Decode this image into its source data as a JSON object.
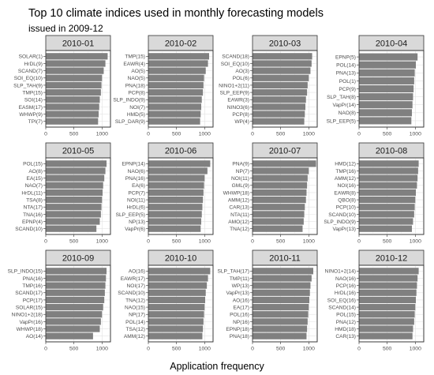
{
  "chart_data": {
    "type": "bar",
    "orientation": "horizontal",
    "title": "Top 10 climate indices used in monthly forecasting models",
    "subtitle": "issued in 2009-12",
    "xlabel": "Application frequency",
    "xlim": [
      0,
      1150
    ],
    "xticks": [
      "0",
      "500",
      "1000"
    ],
    "grid": true,
    "panels": [
      {
        "name": "2010-01",
        "categories": [
          "SOLAR(1)",
          "HrDL(9)",
          "SCAND(7)",
          "SOI_EQ(10)",
          "SLP_TAH(9)",
          "TMP(15)",
          "SOI(14)",
          "EASM(17)",
          "WHWP(9)",
          "TPI(7)"
        ],
        "values": [
          1100,
          1060,
          1030,
          1000,
          990,
          980,
          960,
          950,
          940,
          930
        ]
      },
      {
        "name": "2010-02",
        "categories": [
          "TMP(15)",
          "EAWR(4)",
          "AO(5)",
          "NAO(5)",
          "PNA(18)",
          "PCP(8)",
          "SLP_INDO(9)",
          "NOI(7)",
          "HMD(5)",
          "SLP_DAR(9)"
        ],
        "values": [
          1080,
          1060,
          1020,
          990,
          980,
          970,
          950,
          940,
          930,
          920
        ]
      },
      {
        "name": "2010-03",
        "categories": [
          "SCAND(18)",
          "SOI_EQ(10)",
          "AO(3)",
          "POL(6)",
          "NINO1+2(11)",
          "SLP_EEP(9)",
          "EAWR(3)",
          "NINO3(6)",
          "PCP(8)",
          "WP(4)"
        ],
        "values": [
          1060,
          1050,
          1030,
          1000,
          980,
          970,
          950,
          940,
          930,
          920
        ]
      },
      {
        "name": "2010-04",
        "categories": [
          "EPNP(5)",
          "POL(14)",
          "PNA(13)",
          "POL(1)",
          "PCP(9)",
          "SLP_TAH(8)",
          "VapPr(14)",
          "NAO(8)",
          "SLP_EEP(5)"
        ],
        "values": [
          1040,
          1010,
          990,
          980,
          970,
          960,
          950,
          940,
          930
        ]
      },
      {
        "name": "2010-05",
        "categories": [
          "POL(15)",
          "AO(8)",
          "EA(15)",
          "NAO(7)",
          "HrDL(11)",
          "TSA(8)",
          "NTA(17)",
          "TNA(16)",
          "EPNP(4)",
          "SCAND(10)"
        ],
        "values": [
          1080,
          1060,
          1040,
          1020,
          1010,
          1000,
          990,
          980,
          960,
          900
        ]
      },
      {
        "name": "2010-06",
        "categories": [
          "EPNP(14)",
          "NAO(6)",
          "PNA(16)",
          "EA(6)",
          "PCP(7)",
          "NOI(11)",
          "HrDL(6)",
          "SLP_EEP(5)",
          "NP(13)",
          "VapPr(6)"
        ],
        "values": [
          1100,
          1050,
          1000,
          990,
          980,
          970,
          960,
          950,
          940,
          930
        ]
      },
      {
        "name": "2010-07",
        "categories": [
          "PNA(9)",
          "NP(7)",
          "NOI(11)",
          "GML(9)",
          "WHWP(18)",
          "AMM(12)",
          "CAR(13)",
          "NTA(11)",
          "AMO(12)",
          "TNA(12)"
        ],
        "values": [
          1130,
          1000,
          980,
          970,
          960,
          950,
          930,
          920,
          910,
          890
        ]
      },
      {
        "name": "2010-08",
        "categories": [
          "HMD(12)",
          "TMP(16)",
          "AMM(12)",
          "NOI(16)",
          "EAWR(8)",
          "QBO(8)",
          "PCP(10)",
          "SCAND(10)",
          "SLP_INDO(9)",
          "VapPr(13)"
        ],
        "values": [
          1060,
          1050,
          1040,
          1030,
          1010,
          1000,
          990,
          980,
          960,
          940
        ]
      },
      {
        "name": "2010-09",
        "categories": [
          "SLP_INDO(15)",
          "PNA(16)",
          "TMP(16)",
          "SCAND(17)",
          "PCP(17)",
          "SOLAR(15)",
          "NINO1+2(18)",
          "VapPr(16)",
          "WHWP(18)",
          "AO(14)"
        ],
        "values": [
          1080,
          1070,
          1060,
          1050,
          1040,
          1020,
          1000,
          980,
          960,
          840
        ]
      },
      {
        "name": "2010-10",
        "categories": [
          "AO(16)",
          "EAWR(17)",
          "NOI(17)",
          "SCAND(10)",
          "TNA(12)",
          "NAO(15)",
          "NP(17)",
          "POL(14)",
          "TSA(12)",
          "AMM(12)"
        ],
        "values": [
          1100,
          1060,
          1040,
          1020,
          1010,
          1000,
          990,
          980,
          970,
          960
        ]
      },
      {
        "name": "2010-11",
        "categories": [
          "SLP_TAH(17)",
          "TMP(11)",
          "WP(13)",
          "VapPr(13)",
          "AO(16)",
          "EA(17)",
          "POL(16)",
          "NP(16)",
          "EPNP(18)",
          "PNA(18)"
        ],
        "values": [
          1080,
          1050,
          1030,
          1020,
          1010,
          1000,
          990,
          980,
          970,
          960
        ]
      },
      {
        "name": "2010-12",
        "categories": [
          "NINO1+2(14)",
          "NAO(16)",
          "PCP(16)",
          "HrDL(16)",
          "SOI_EQ(16)",
          "SCAND(14)",
          "POL(15)",
          "PNA(12)",
          "HMD(18)",
          "CAR(13)"
        ],
        "values": [
          1060,
          1040,
          1030,
          1020,
          1010,
          1000,
          990,
          980,
          960,
          950
        ]
      }
    ]
  }
}
